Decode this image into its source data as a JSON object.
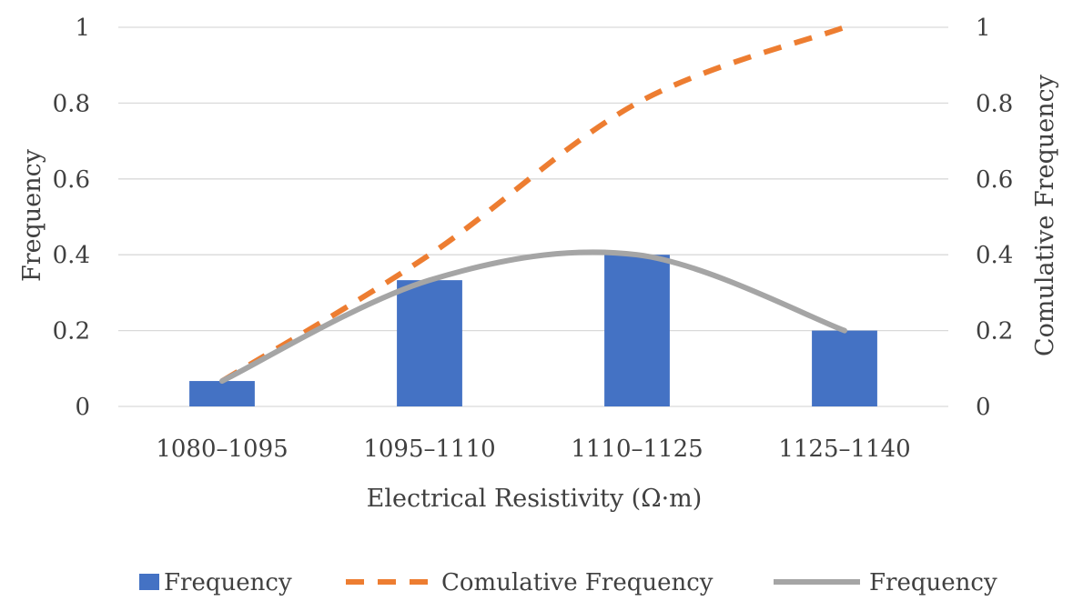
{
  "chart_data": {
    "type": "bar",
    "categories": [
      "1080–1095",
      "1095–1110",
      "1110–1125",
      "1125–1140"
    ],
    "xlabel": "Electrical Resistivity (Ω·m)",
    "ylabel": "Frequency",
    "y2label": "Comulative Frequency",
    "ylim": [
      0,
      1
    ],
    "y2lim": [
      0,
      1
    ],
    "yticks": [
      "0",
      "0.2",
      "0.4",
      "0.6",
      "0.8",
      "1"
    ],
    "y2ticks": [
      "0",
      "0.2",
      "0.4",
      "0.6",
      "0.8",
      "1"
    ],
    "grid": true,
    "legend_position": "bottom",
    "series": [
      {
        "name": "Frequency",
        "kind": "bar",
        "axis": "left",
        "color": "#4472C4",
        "values": [
          0.067,
          0.333,
          0.4,
          0.2
        ]
      },
      {
        "name": "Comulative Frequency",
        "kind": "dashed-line",
        "axis": "right",
        "color": "#ED7D31",
        "values": [
          0.067,
          0.4,
          0.8,
          1.0
        ]
      },
      {
        "name": "Frequency",
        "kind": "smooth-line",
        "axis": "left",
        "color": "#A5A5A5",
        "values": [
          0.067,
          0.333,
          0.4,
          0.2
        ]
      }
    ]
  }
}
